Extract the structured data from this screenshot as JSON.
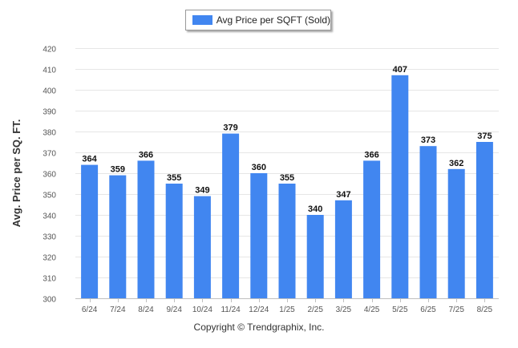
{
  "chart_data": {
    "type": "bar",
    "categories": [
      "6/24",
      "7/24",
      "8/24",
      "9/24",
      "10/24",
      "11/24",
      "12/24",
      "1/25",
      "2/25",
      "3/25",
      "4/25",
      "5/25",
      "6/25",
      "7/25",
      "8/25"
    ],
    "series": [
      {
        "name": "Avg Price per SQFT (Sold)",
        "values": [
          364,
          359,
          366,
          355,
          349,
          379,
          360,
          355,
          340,
          347,
          366,
          407,
          373,
          362,
          375
        ]
      }
    ],
    "ylabel": "Avg. Price per SQ. FT.",
    "xlabel": "",
    "ylim": [
      300,
      420
    ],
    "yticks": [
      300,
      310,
      320,
      330,
      340,
      350,
      360,
      370,
      380,
      390,
      400,
      410,
      420
    ],
    "grid": true,
    "legend": "top-center",
    "data_labels": true,
    "colors": {
      "bar": "#4186f0"
    }
  },
  "footer": {
    "copyright": "Copyright © Trendgraphix, Inc."
  }
}
